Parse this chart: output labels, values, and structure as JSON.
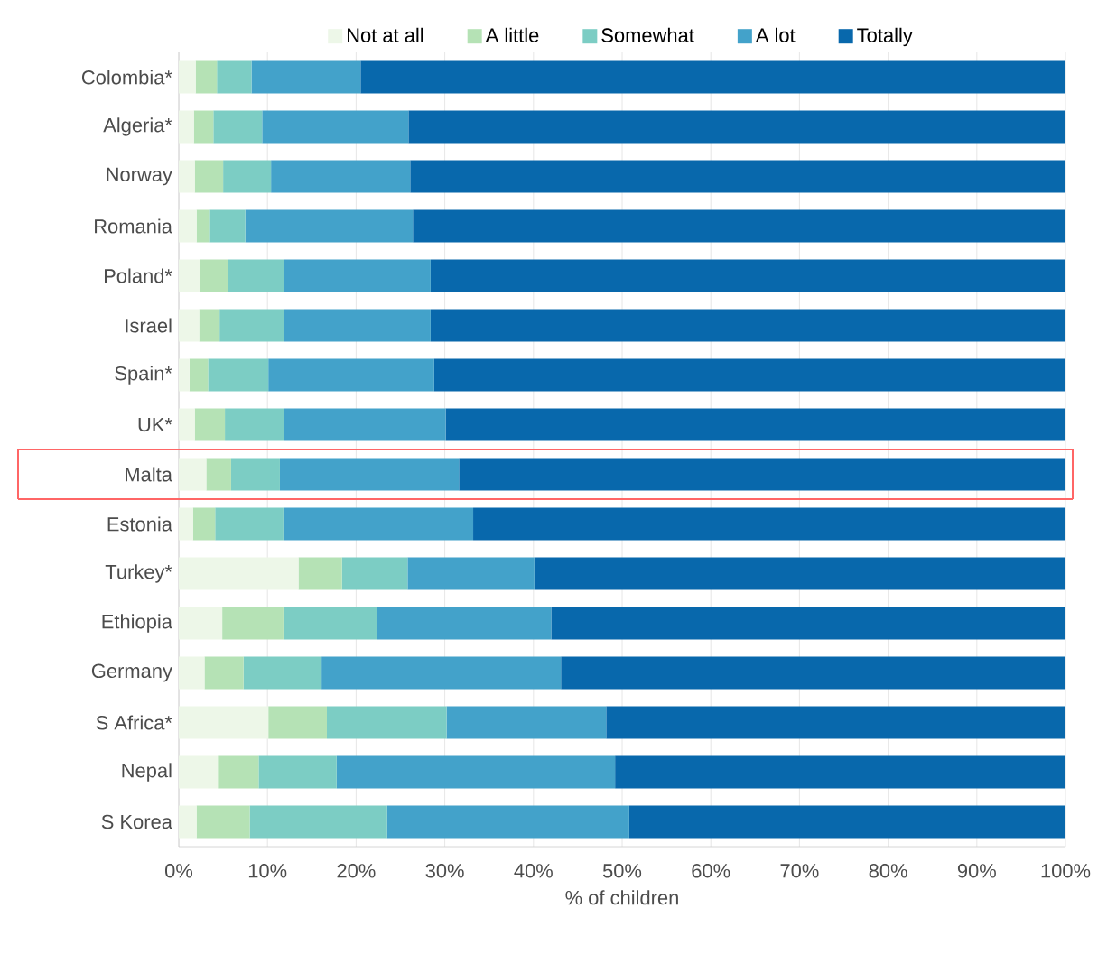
{
  "chart_data": {
    "type": "bar",
    "orientation": "horizontal",
    "stacked": true,
    "xlabel": "% of children",
    "categories": [
      "Colombia*",
      "Algeria*",
      "Norway",
      "Romania",
      "Poland*",
      "Israel",
      "Spain*",
      "UK*",
      "Malta",
      "Estonia",
      "Turkey*",
      "Ethiopia",
      "Germany",
      "S Africa*",
      "Nepal",
      "S Korea"
    ],
    "series": [
      {
        "name": "Not at all",
        "color": "#edf7e8",
        "values": [
          1.9,
          1.7,
          1.8,
          2.0,
          2.4,
          2.3,
          1.2,
          1.8,
          3.1,
          1.6,
          13.5,
          4.9,
          2.9,
          10.1,
          4.4,
          2.0
        ]
      },
      {
        "name": "A little",
        "color": "#b5e2b5",
        "values": [
          2.4,
          2.2,
          3.2,
          1.5,
          3.1,
          2.3,
          2.1,
          3.4,
          2.8,
          2.5,
          4.9,
          6.9,
          4.4,
          6.6,
          4.6,
          6.0
        ]
      },
      {
        "name": "Somewhat",
        "color": "#7ccdc4",
        "values": [
          3.9,
          5.5,
          5.4,
          4.0,
          6.4,
          7.3,
          6.8,
          6.7,
          5.5,
          7.7,
          7.4,
          10.6,
          8.8,
          13.5,
          8.8,
          15.5
        ]
      },
      {
        "name": "A lot",
        "color": "#43a2ca",
        "values": [
          12.3,
          16.5,
          15.7,
          18.9,
          16.5,
          16.5,
          18.7,
          18.2,
          20.2,
          21.4,
          14.3,
          19.6,
          27.0,
          18.0,
          31.4,
          27.3
        ]
      },
      {
        "name": "Totally",
        "color": "#0868ac",
        "values": [
          79.5,
          74.1,
          73.9,
          73.6,
          71.6,
          71.6,
          71.2,
          69.9,
          68.4,
          66.8,
          59.9,
          58.0,
          56.9,
          51.8,
          50.8,
          49.2
        ]
      }
    ],
    "xlim": [
      0,
      100
    ],
    "xticks": [
      {
        "value": 0,
        "label": "0%"
      },
      {
        "value": 10,
        "label": "10%"
      },
      {
        "value": 20,
        "label": "20%"
      },
      {
        "value": 30,
        "label": "30%"
      },
      {
        "value": 40,
        "label": "40%"
      },
      {
        "value": 50,
        "label": "50%"
      },
      {
        "value": 60,
        "label": "60%"
      },
      {
        "value": 70,
        "label": "70%"
      },
      {
        "value": 80,
        "label": "80%"
      },
      {
        "value": 90,
        "label": "90%"
      },
      {
        "value": 100,
        "label": "100%"
      }
    ],
    "grid": "x",
    "legend": "top"
  }
}
